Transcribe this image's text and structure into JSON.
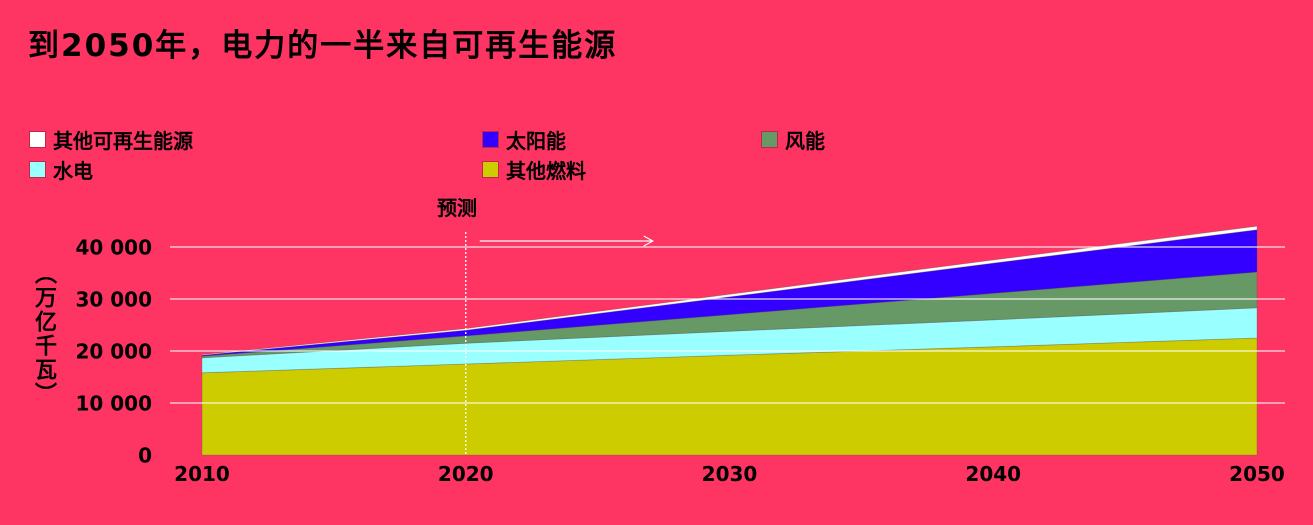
{
  "title": "到2050年，电力的一半来自可再生能源",
  "legend": [
    {
      "label": "其他可再生能源",
      "color": "#ffffff"
    },
    {
      "label": "太阳能",
      "color": "#3300ff"
    },
    {
      "label": "风能",
      "color": "#669966"
    },
    {
      "label": "水电",
      "color": "#99ffff"
    },
    {
      "label": "其他燃料",
      "color": "#cccc00"
    }
  ],
  "forecast_label": "预测",
  "chart_data": {
    "type": "area",
    "stacked": true,
    "title": "到2050年，电力的一半来自可再生能源",
    "xlabel": "",
    "ylabel": "（万亿千瓦）",
    "x": [
      2010,
      2020,
      2030,
      2040,
      2050
    ],
    "xlim": [
      2010,
      2050
    ],
    "ylim": [
      0,
      40000
    ],
    "xticks": [
      "2010",
      "2020",
      "2030",
      "2040",
      "2050"
    ],
    "yticks": [
      "0",
      "10 000",
      "20 000",
      "30 000",
      "40 000"
    ],
    "grid": true,
    "legend_position": "top",
    "forecast_start": 2020,
    "series": [
      {
        "name": "其他燃料",
        "color": "#cccc00",
        "values": [
          15800,
          17500,
          19200,
          20800,
          22500
        ]
      },
      {
        "name": "水电",
        "color": "#99ffff",
        "values": [
          2900,
          4000,
          4600,
          5200,
          5800
        ]
      },
      {
        "name": "风能",
        "color": "#669966",
        "values": [
          300,
          1400,
          3200,
          5100,
          6900
        ]
      },
      {
        "name": "太阳能",
        "color": "#3300ff",
        "values": [
          200,
          1100,
          3400,
          5800,
          8100
        ]
      },
      {
        "name": "其他可再生能源",
        "color": "#ffffff",
        "values": [
          100,
          300,
          500,
          600,
          700
        ]
      }
    ]
  }
}
